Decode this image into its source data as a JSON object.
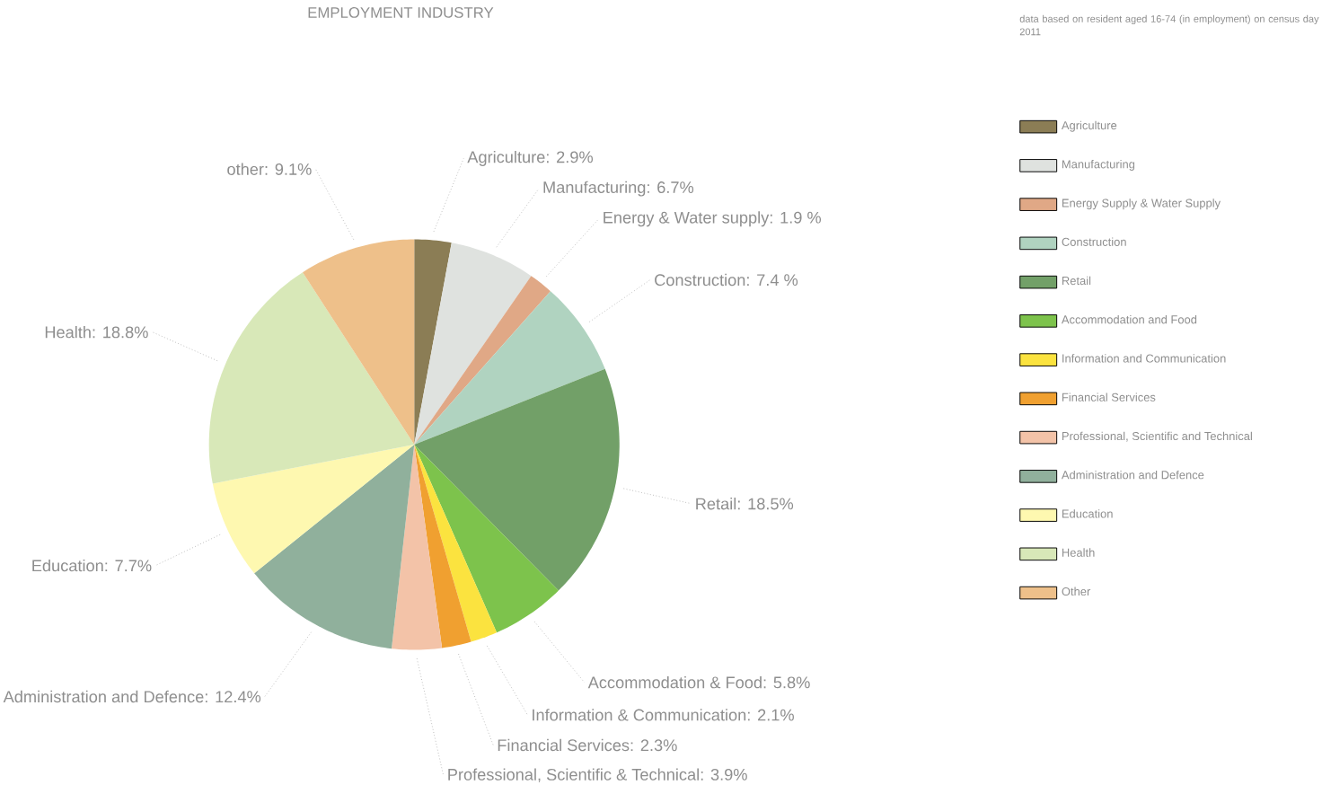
{
  "chart_data": {
    "type": "pie",
    "title": "EMPLOYMENT INDUSTRY",
    "subtitle": "data based on resident aged 16-74 (in employment) on census day 2011",
    "categories": [
      "Agriculture",
      "Manufacturing",
      "Energy Supply & Water Supply",
      "Construction",
      "Retail",
      "Accommodation and Food",
      "Information and Communication",
      "Financial Services",
      "Professional, Scientific and Technical",
      "Administration and Defence",
      "Education",
      "Health",
      "Other"
    ],
    "values": [
      2.9,
      6.7,
      1.9,
      7.4,
      18.5,
      5.8,
      2.1,
      2.3,
      3.9,
      12.4,
      7.7,
      18.8,
      9.1
    ],
    "colors": [
      "#8b7d55",
      "#dfe2df",
      "#e0a886",
      "#b0d3c0",
      "#72a068",
      "#7dc34c",
      "#fbe33f",
      "#f0a030",
      "#f3c3a8",
      "#90b09c",
      "#fef8b0",
      "#d8e8b8",
      "#eec08a"
    ],
    "value_labels": [
      "Agriculture: 2.9%",
      "Manufacturing: 6.7%",
      "Energy & Water supply: 1.9 %",
      "Construction: 7.4 %",
      "Retail: 18.5%",
      "Accommodation & Food: 5.8%",
      "Information & Communication: 2.1%",
      "Financial Services: 2.3%",
      "Professional, Scientific & Technical: 3.9%",
      "Administration and Defence: 12.4%",
      "Education: 7.7%",
      "Health: 18.8%",
      "other: 9.1%"
    ],
    "legend": "right"
  }
}
